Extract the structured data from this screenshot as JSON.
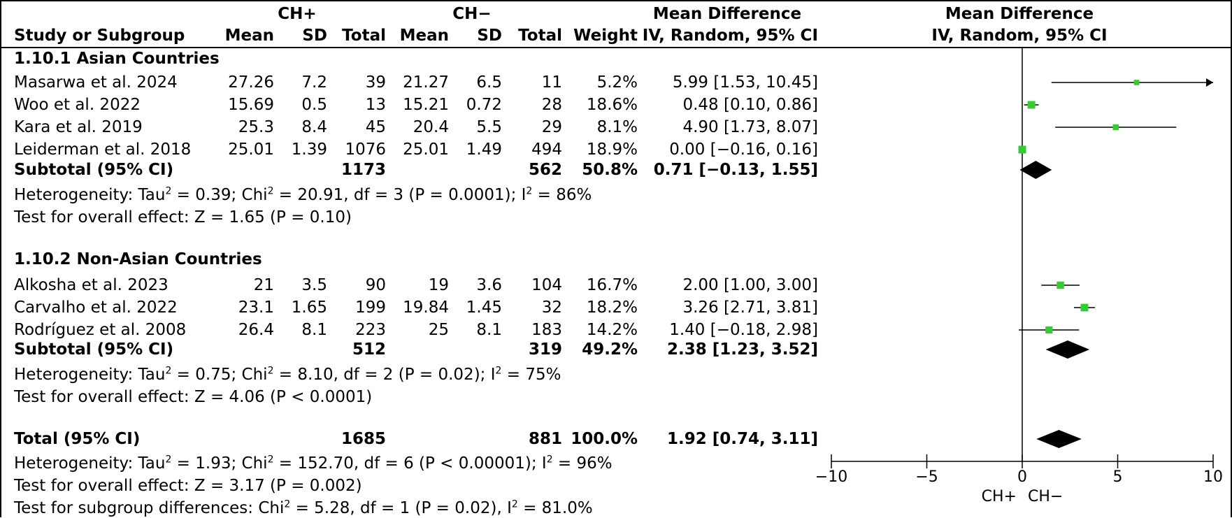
{
  "header": {
    "group1": "CH+",
    "group2": "CH−",
    "md_title": "Mean Difference",
    "md_method": "IV, Random, 95% CI",
    "plot_title": "Mean Difference",
    "plot_method": "IV, Random, 95% CI",
    "col_study": "Study or Subgroup",
    "col_mean1": "Mean",
    "col_sd1": "SD",
    "col_total1": "Total",
    "col_mean2": "Mean",
    "col_sd2": "SD",
    "col_total2": "Total",
    "col_weight": "Weight"
  },
  "groups": [
    {
      "title": "1.10.1 Asian Countries",
      "studies": [
        {
          "name": "Masarwa et al. 2024",
          "mean1": "27.26",
          "sd1": "7.2",
          "total1": "39",
          "mean2": "21.27",
          "sd2": "6.5",
          "total2": "11",
          "weight": "5.2%",
          "ci": "5.99 [1.53, 10.45]"
        },
        {
          "name": "Woo et al. 2022",
          "mean1": "15.69",
          "sd1": "0.5",
          "total1": "13",
          "mean2": "15.21",
          "sd2": "0.72",
          "total2": "28",
          "weight": "18.6%",
          "ci": "0.48 [0.10, 0.86]"
        },
        {
          "name": "Kara et al. 2019",
          "mean1": "25.3",
          "sd1": "8.4",
          "total1": "45",
          "mean2": "20.4",
          "sd2": "5.5",
          "total2": "29",
          "weight": "8.1%",
          "ci": "4.90 [1.73, 8.07]"
        },
        {
          "name": "Leiderman et al. 2018",
          "mean1": "25.01",
          "sd1": "1.39",
          "total1": "1076",
          "mean2": "25.01",
          "sd2": "1.49",
          "total2": "494",
          "weight": "18.9%",
          "ci": "0.00 [−0.16, 0.16]"
        }
      ],
      "subtotal": {
        "label": "Subtotal (95% CI)",
        "total1": "1173",
        "total2": "562",
        "weight": "50.8%",
        "ci": "0.71 [−0.13, 1.55]"
      },
      "heterogeneity": {
        "prefix": "Heterogeneity: Tau",
        "mid1": " = 0.39; Chi",
        "mid2": " = 20.91, df = 3 (P = 0.0001); I",
        "end": " = 86%"
      },
      "overall": "Test for overall effect: Z = 1.65 (P = 0.10)"
    },
    {
      "title": "1.10.2 Non-Asian Countries",
      "studies": [
        {
          "name": "Alkosha et al. 2023",
          "mean1": "21",
          "sd1": "3.5",
          "total1": "90",
          "mean2": "19",
          "sd2": "3.6",
          "total2": "104",
          "weight": "16.7%",
          "ci": "2.00 [1.00, 3.00]"
        },
        {
          "name": "Carvalho et al. 2022",
          "mean1": "23.1",
          "sd1": "1.65",
          "total1": "199",
          "mean2": "19.84",
          "sd2": "1.45",
          "total2": "32",
          "weight": "18.2%",
          "ci": "3.26 [2.71, 3.81]"
        },
        {
          "name": "Rodríguez et al. 2008",
          "mean1": "26.4",
          "sd1": "8.1",
          "total1": "223",
          "mean2": "25",
          "sd2": "8.1",
          "total2": "183",
          "weight": "14.2%",
          "ci": "1.40 [−0.18, 2.98]"
        }
      ],
      "subtotal": {
        "label": "Subtotal (95% CI)",
        "total1": "512",
        "total2": "319",
        "weight": "49.2%",
        "ci": "2.38 [1.23, 3.52]"
      },
      "heterogeneity": {
        "prefix": "Heterogeneity: Tau",
        "mid1": " = 0.75; Chi",
        "mid2": " = 8.10, df = 2 (P = 0.02); I",
        "end": " = 75%"
      },
      "overall": "Test for overall effect: Z = 4.06 (P < 0.0001)"
    }
  ],
  "total": {
    "label": "Total (95% CI)",
    "total1": "1685",
    "total2": "881",
    "weight": "100.0%",
    "ci": "1.92 [0.74, 3.11]",
    "heterogeneity": {
      "prefix": "Heterogeneity: Tau",
      "mid1": " = 1.93; Chi",
      "mid2": " = 152.70, df = 6 (P < 0.00001); I",
      "end": " = 96%"
    },
    "overall": "Test for overall effect: Z = 3.17 (P = 0.002)",
    "subgroup": {
      "prefix": "Test for subgroup differences: Chi",
      "mid": " = 5.28, df = 1 (P = 0.02), I",
      "end": " = 81.0%"
    }
  },
  "sup2": "2",
  "chart_data": {
    "type": "forest",
    "xlim": [
      -10,
      10
    ],
    "ticks": [
      -10,
      -5,
      0,
      5,
      10
    ],
    "tick_labels": [
      "−10",
      "−5",
      "0",
      "5",
      "10"
    ],
    "favours_left": "CH+",
    "favours_right": "CH−",
    "marker_color": "#33cc33",
    "studies": [
      {
        "name": "Masarwa et al. 2024",
        "est": 5.99,
        "lo": 1.53,
        "hi": 10.45,
        "weight": 5.2
      },
      {
        "name": "Woo et al. 2022",
        "est": 0.48,
        "lo": 0.1,
        "hi": 0.86,
        "weight": 18.6
      },
      {
        "name": "Kara et al. 2019",
        "est": 4.9,
        "lo": 1.73,
        "hi": 8.07,
        "weight": 8.1
      },
      {
        "name": "Leiderman et al. 2018",
        "est": 0.0,
        "lo": -0.16,
        "hi": 0.16,
        "weight": 18.9
      },
      {
        "name": "Alkosha et al. 2023",
        "est": 2.0,
        "lo": 1.0,
        "hi": 3.0,
        "weight": 16.7
      },
      {
        "name": "Carvalho et al. 2022",
        "est": 3.26,
        "lo": 2.71,
        "hi": 3.81,
        "weight": 18.2
      },
      {
        "name": "Rodríguez et al. 2008",
        "est": 1.4,
        "lo": -0.18,
        "hi": 2.98,
        "weight": 14.2
      }
    ],
    "diamonds": [
      {
        "name": "Subtotal 1.10.1",
        "est": 0.71,
        "lo": -0.13,
        "hi": 1.55
      },
      {
        "name": "Subtotal 1.10.2",
        "est": 2.38,
        "lo": 1.23,
        "hi": 3.52
      },
      {
        "name": "Total",
        "est": 1.92,
        "lo": 0.74,
        "hi": 3.11
      }
    ]
  }
}
